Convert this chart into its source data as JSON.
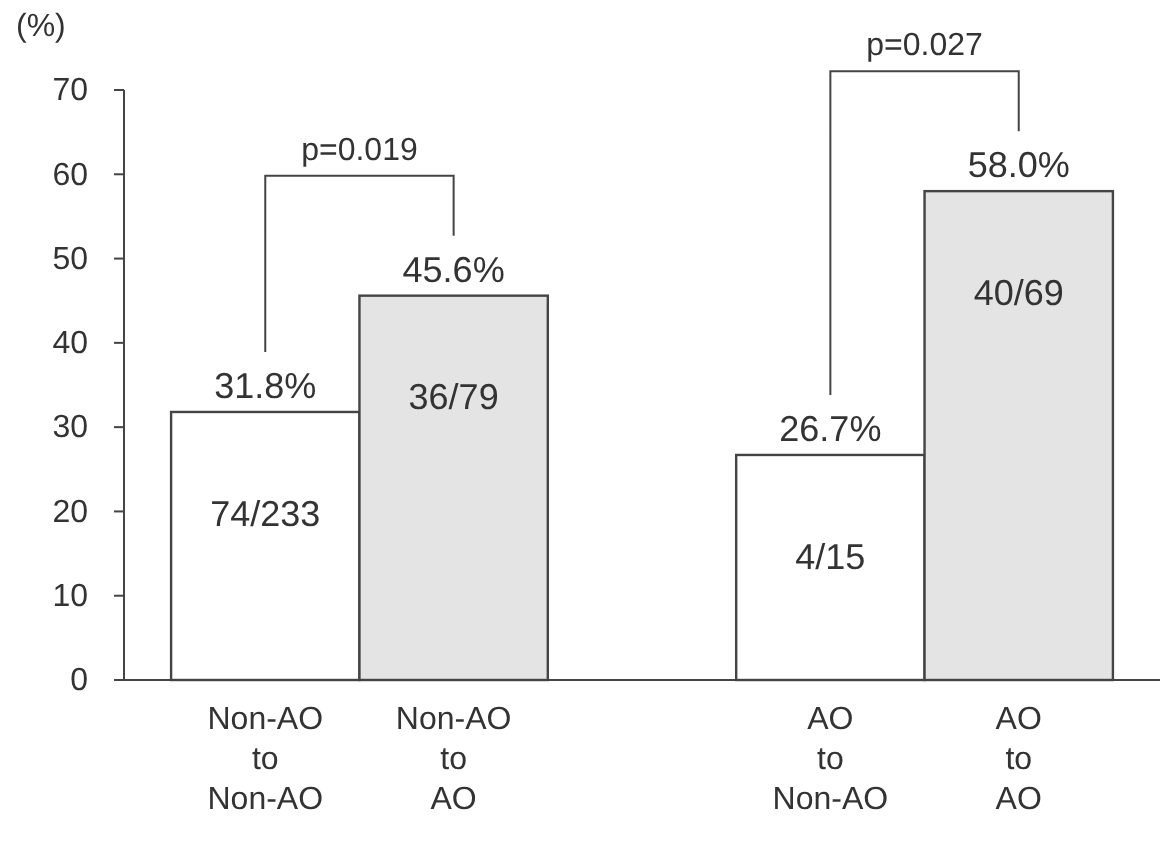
{
  "chart_data": {
    "type": "bar",
    "ylabel": "(%)",
    "categories": [
      "Non-AO\nto\nNon-AO",
      "Non-AO\nto\nAO",
      null,
      "AO\nto\nNon-AO",
      "AO\nto\nAO"
    ],
    "values": [
      31.8,
      45.6,
      null,
      26.7,
      58.0
    ],
    "colors": [
      "#ffffff",
      "#e4e4e4",
      null,
      "#ffffff",
      "#e4e4e4"
    ],
    "value_labels": [
      "31.8%",
      "45.6%",
      null,
      "26.7%",
      "58.0%"
    ],
    "ylim": [
      0,
      70
    ],
    "yticks": [
      0,
      10,
      20,
      30,
      40,
      50,
      60,
      70
    ],
    "grid": false,
    "annotations": [
      "74/233",
      "36/79",
      "4/15",
      "40/69",
      "p=0.019",
      "p=0.027"
    ]
  }
}
